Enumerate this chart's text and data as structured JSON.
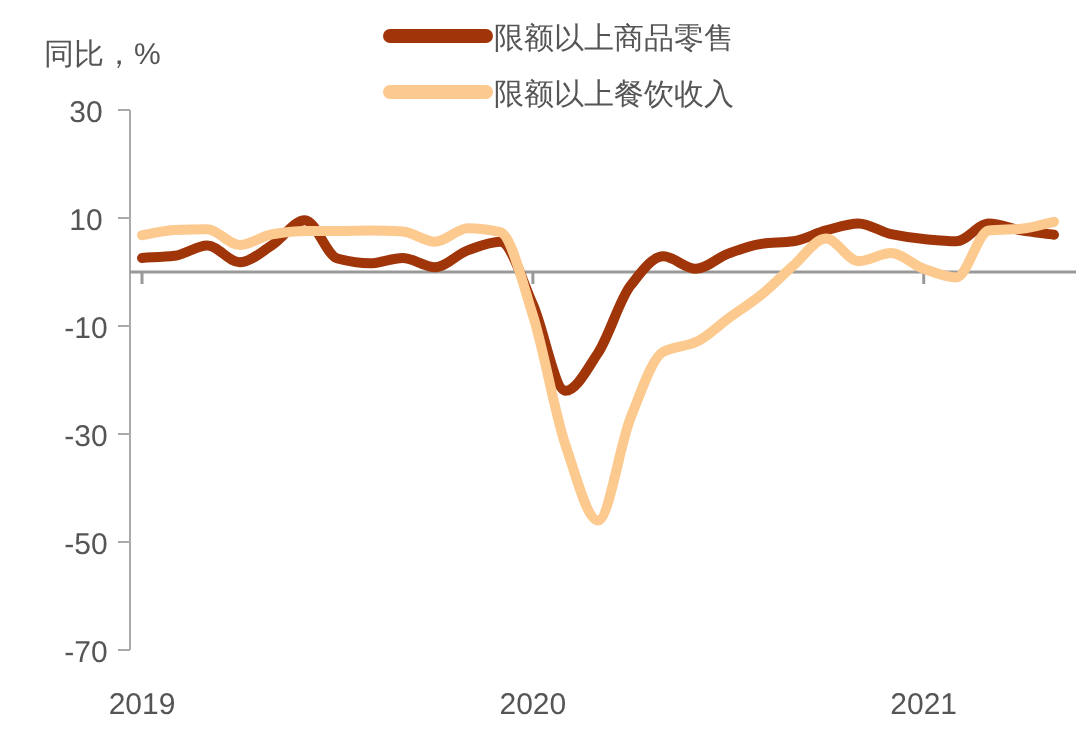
{
  "chart_data": {
    "type": "line",
    "ylabel": "同比，%",
    "categories": [
      "2019",
      null,
      null,
      null,
      null,
      null,
      null,
      null,
      null,
      null,
      null,
      null,
      "2020",
      null,
      null,
      null,
      null,
      null,
      null,
      null,
      null,
      null,
      null,
      null,
      "2021",
      null,
      null,
      null,
      null
    ],
    "series": [
      {
        "name": "限额以上商品零售",
        "color": "#a0350a",
        "values": [
          2.6,
          3.0,
          4.9,
          1.8,
          5,
          9.6,
          2.5,
          1.6,
          2.6,
          0.9,
          4,
          5.6,
          -6,
          -22,
          -15,
          -2.5,
          2.9,
          0.6,
          3.4,
          5.2,
          5.7,
          7.7,
          9,
          7,
          6.1,
          5.7,
          9,
          7.7,
          6.9
        ]
      },
      {
        "name": "限额以上餐饮收入",
        "color": "#fcc98f",
        "values": [
          6.8,
          7.8,
          7.9,
          5,
          7,
          7.6,
          7.6,
          7.7,
          7.5,
          5.6,
          8.1,
          7.4,
          -8,
          -32,
          -46,
          -27,
          -14.8,
          -13,
          -8.6,
          -4.3,
          1.2,
          6.2,
          2,
          3.5,
          0.6,
          -1,
          7.7,
          8,
          9.3
        ]
      }
    ],
    "ylim": [
      -70,
      30
    ],
    "yticks": [
      -70,
      -50,
      -30,
      -10,
      10,
      30
    ],
    "grid": false,
    "legend": "top",
    "marker": "none",
    "line_style": "solid"
  }
}
